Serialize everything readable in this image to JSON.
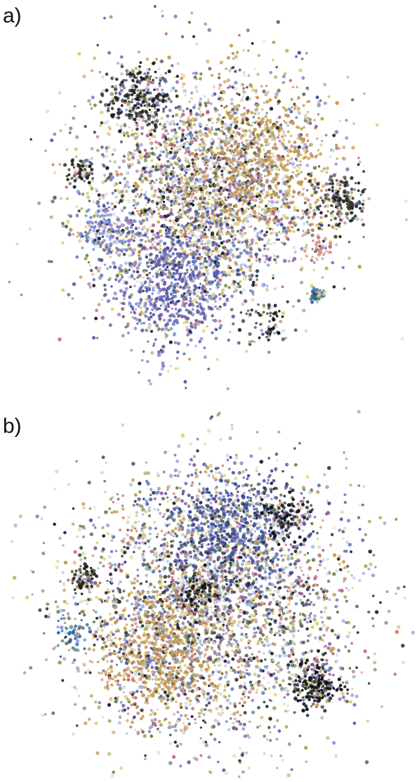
{
  "panels": [
    {
      "label": "a)"
    },
    {
      "label": "b)"
    }
  ],
  "chart_data": [
    {
      "type": "scatter",
      "panel": "a)",
      "title": "",
      "xlabel": "",
      "ylabel": "",
      "grid": false,
      "legend": "none",
      "axes": "hidden",
      "palette": [
        "#1a1f3a",
        "#3b4f9a",
        "#6a7fc8",
        "#9fb4dc",
        "#c9d8e6",
        "#e8c9a0",
        "#c69a4e",
        "#a8a86a",
        "#6f7a4a",
        "#2a2a22",
        "#c46a7a",
        "#8a5aa0",
        "#d7d16e"
      ],
      "clusters": [
        {
          "center": [
            -0.05,
            0.08
          ],
          "spread": 0.28,
          "count": 2600,
          "palette_weights": "mixed"
        },
        {
          "center": [
            -0.18,
            -0.35
          ],
          "spread": 0.15,
          "count": 700,
          "dominant": "#5a5fb0"
        },
        {
          "center": [
            0.25,
            0.25
          ],
          "spread": 0.18,
          "count": 700,
          "dominant": "#c69a4e"
        },
        {
          "center": [
            -0.35,
            0.55
          ],
          "spread": 0.08,
          "count": 250,
          "dominant": "#1a1a22"
        },
        {
          "center": [
            0.62,
            0.05
          ],
          "spread": 0.06,
          "count": 160,
          "dominant": "#2a2a22"
        },
        {
          "center": [
            -0.62,
            0.18
          ],
          "spread": 0.03,
          "count": 60,
          "dominant": "#22261a"
        },
        {
          "center": [
            0.28,
            -0.55
          ],
          "spread": 0.05,
          "count": 60,
          "dominant": "#111111"
        },
        {
          "center": [
            0.5,
            -0.4
          ],
          "spread": 0.02,
          "count": 40,
          "dominant": "#2a6aa0"
        },
        {
          "center": [
            0.52,
            -0.18
          ],
          "spread": 0.03,
          "count": 40,
          "dominant": "#d98a8a"
        },
        {
          "center": [
            -0.5,
            -0.1
          ],
          "spread": 0.06,
          "count": 140,
          "dominant": "#7a86d0"
        }
      ]
    },
    {
      "type": "scatter",
      "panel": "b)",
      "title": "",
      "xlabel": "",
      "ylabel": "",
      "grid": false,
      "legend": "none",
      "axes": "hidden",
      "palette": [
        "#1a1f3a",
        "#3b4f9a",
        "#6a7fc8",
        "#9fb4dc",
        "#c9d8e6",
        "#e8c9a0",
        "#c69a4e",
        "#a8a86a",
        "#6f7a4a",
        "#2a2a22",
        "#c46a7a",
        "#8a5aa0",
        "#d7d16e"
      ],
      "clusters": [
        {
          "center": [
            0.0,
            0.0
          ],
          "spread": 0.33,
          "count": 3200,
          "palette_weights": "mixed"
        },
        {
          "center": [
            0.1,
            0.38
          ],
          "spread": 0.15,
          "count": 600,
          "dominant": "#3b4f9a"
        },
        {
          "center": [
            -0.25,
            -0.25
          ],
          "spread": 0.15,
          "count": 500,
          "dominant": "#c69a4e"
        },
        {
          "center": [
            0.5,
            -0.38
          ],
          "spread": 0.06,
          "count": 250,
          "dominant": "#101018"
        },
        {
          "center": [
            -0.05,
            0.05
          ],
          "spread": 0.04,
          "count": 80,
          "dominant": "#111111"
        },
        {
          "center": [
            -0.6,
            0.12
          ],
          "spread": 0.03,
          "count": 60,
          "dominant": "#1e2418"
        },
        {
          "center": [
            -0.66,
            -0.13
          ],
          "spread": 0.04,
          "count": 60,
          "dominant": "#2a6aa0"
        },
        {
          "center": [
            0.35,
            0.42
          ],
          "spread": 0.06,
          "count": 140,
          "dominant": "#0e0e14"
        }
      ]
    }
  ]
}
